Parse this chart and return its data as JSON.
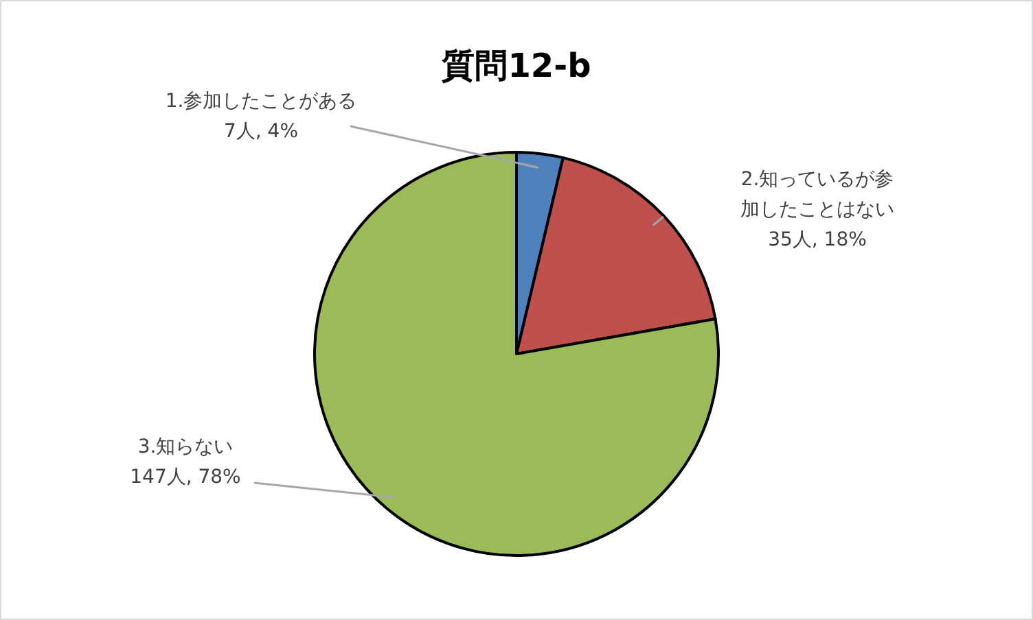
{
  "chart_data": {
    "type": "pie",
    "title": "質問12-b",
    "categories": [
      "1.参加したことがある",
      "2.知っているが参加したことはない",
      "3.知らない"
    ],
    "values": [
      7,
      35,
      147
    ],
    "value_labels": [
      "7人, 4%",
      "35人, 18%",
      "147人, 78%"
    ],
    "colors": [
      "#4f81bd",
      "#c0504d",
      "#9bbb59"
    ],
    "legend": false
  }
}
